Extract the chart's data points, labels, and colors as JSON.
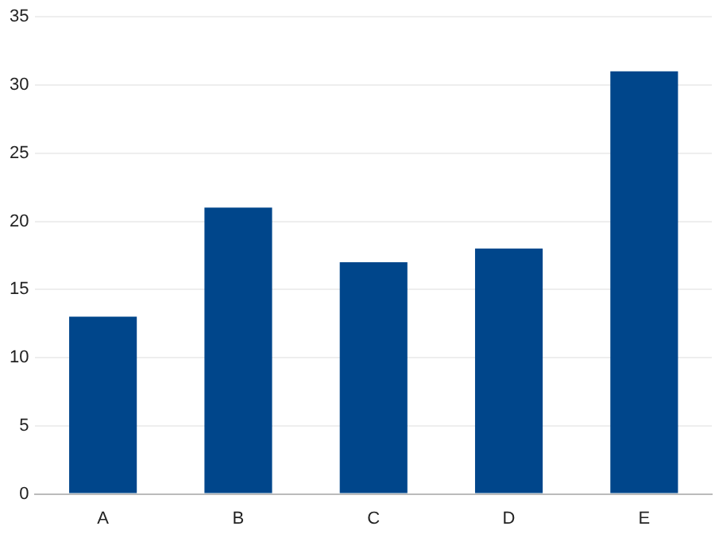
{
  "chart_data": {
    "type": "bar",
    "categories": [
      "A",
      "B",
      "C",
      "D",
      "E"
    ],
    "values": [
      13,
      21,
      17,
      18,
      31
    ],
    "color": "#00468b",
    "ylim": [
      0,
      35
    ],
    "yticks": [
      0,
      5,
      10,
      15,
      20,
      25,
      30,
      35
    ],
    "grid": "y",
    "legend": false
  }
}
